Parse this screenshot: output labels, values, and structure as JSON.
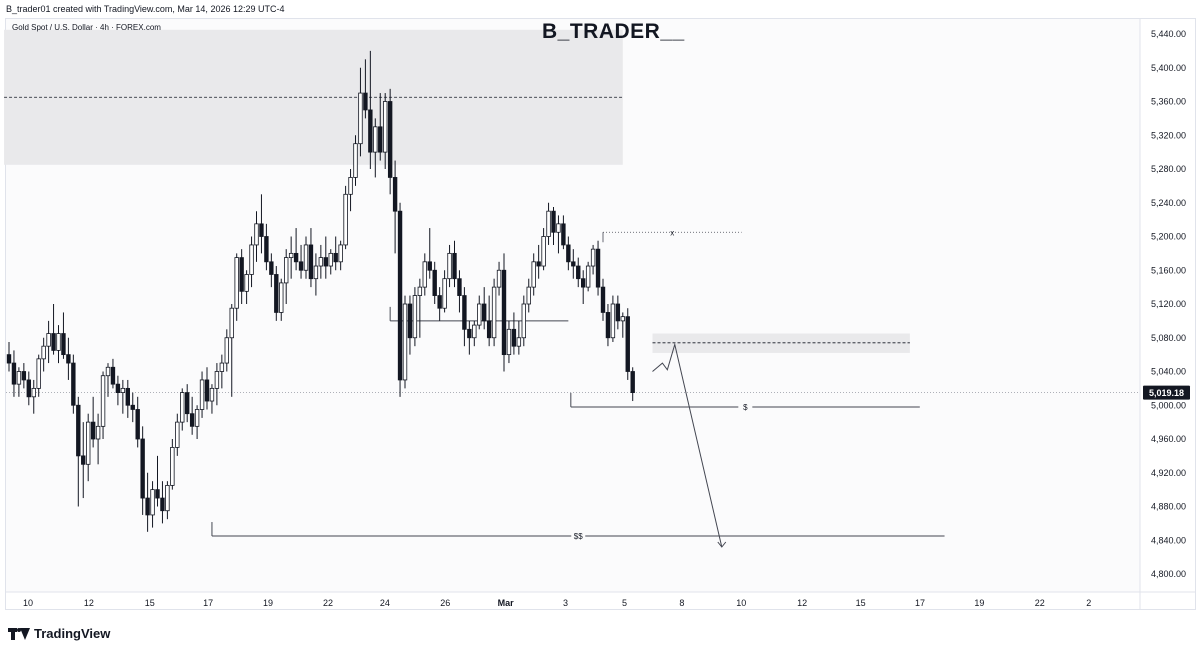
{
  "header": {
    "text": "B_trader01 created with TradingView.com, Mar 14, 2026 12:29 UTC-4"
  },
  "legend": {
    "symbol": "Gold Spot / U.S. Dollar · 4h · FOREX.com"
  },
  "watermark": {
    "text": "B_TRADER__"
  },
  "footer": {
    "brand": "TradingView"
  },
  "colors": {
    "bull": "#ffffff",
    "bear": "#131722",
    "wick": "#131722",
    "zone": "#e9e9eb",
    "line": "#131722"
  },
  "chart_data": {
    "type": "candlestick",
    "timeframe": "4h",
    "ylim": [
      4780,
      5460
    ],
    "y_ticks": [
      5440,
      5400,
      5360,
      5320,
      5280,
      5240,
      5200,
      5160,
      5120,
      5080,
      5040,
      5000,
      4960,
      4920,
      4880,
      4840,
      4800
    ],
    "x_ticks": [
      {
        "label": "10",
        "pos": 0.2
      },
      {
        "label": "12",
        "pos": 12.5
      },
      {
        "label": "15",
        "pos": 24.8
      },
      {
        "label": "17",
        "pos": 36.6
      },
      {
        "label": "19",
        "pos": 48.7
      },
      {
        "label": "22",
        "pos": 60.8
      },
      {
        "label": "24",
        "pos": 72.3
      },
      {
        "label": "26",
        "pos": 84.5
      },
      {
        "label": "Mar",
        "pos": 96.7
      },
      {
        "label": "3",
        "pos": 108.8
      },
      {
        "label": "5",
        "pos": 120.7
      },
      {
        "label": "8",
        "pos": 132.3
      },
      {
        "label": "10",
        "pos": 144.3
      },
      {
        "label": "12",
        "pos": 156.6
      },
      {
        "label": "15",
        "pos": 168.4
      },
      {
        "label": "17",
        "pos": 180.4
      },
      {
        "label": "19",
        "pos": 192.4
      },
      {
        "label": "22",
        "pos": 204.6
      },
      {
        "label": "2",
        "pos": 214.5
      }
    ],
    "candles": [
      [
        5060,
        5075,
        5040,
        5050
      ],
      [
        5050,
        5065,
        5010,
        5025
      ],
      [
        5025,
        5045,
        5010,
        5040
      ],
      [
        5040,
        5050,
        5020,
        5030
      ],
      [
        5030,
        5040,
        5000,
        5010
      ],
      [
        5010,
        5030,
        4990,
        5020
      ],
      [
        5020,
        5060,
        5010,
        5055
      ],
      [
        5055,
        5080,
        5040,
        5070
      ],
      [
        5070,
        5100,
        5050,
        5085
      ],
      [
        5085,
        5120,
        5060,
        5065
      ],
      [
        5065,
        5095,
        5050,
        5085
      ],
      [
        5085,
        5110,
        5055,
        5060
      ],
      [
        5060,
        5080,
        5030,
        5050
      ],
      [
        5050,
        5060,
        4990,
        5000
      ],
      [
        5000,
        5010,
        4880,
        4940
      ],
      [
        4940,
        4980,
        4890,
        4930
      ],
      [
        4930,
        4990,
        4910,
        4980
      ],
      [
        4980,
        5010,
        4950,
        4960
      ],
      [
        4960,
        4990,
        4930,
        4975
      ],
      [
        4975,
        5040,
        4960,
        5035
      ],
      [
        5035,
        5050,
        5010,
        5045
      ],
      [
        5045,
        5055,
        5020,
        5025
      ],
      [
        5025,
        5035,
        5000,
        5015
      ],
      [
        5015,
        5030,
        4990,
        5020
      ],
      [
        5020,
        5030,
        4985,
        5000
      ],
      [
        5000,
        5015,
        4980,
        4995
      ],
      [
        4995,
        5010,
        4950,
        4960
      ],
      [
        4960,
        4975,
        4870,
        4890
      ],
      [
        4890,
        4920,
        4850,
        4870
      ],
      [
        4870,
        4910,
        4855,
        4900
      ],
      [
        4900,
        4940,
        4880,
        4890
      ],
      [
        4890,
        4910,
        4860,
        4875
      ],
      [
        4875,
        4910,
        4865,
        4905
      ],
      [
        4905,
        4960,
        4900,
        4950
      ],
      [
        4950,
        4990,
        4940,
        4980
      ],
      [
        4980,
        5020,
        4970,
        5015
      ],
      [
        5015,
        5025,
        4980,
        4990
      ],
      [
        4990,
        5010,
        4965,
        4975
      ],
      [
        4975,
        5000,
        4960,
        4995
      ],
      [
        4995,
        5040,
        4985,
        5030
      ],
      [
        5030,
        5045,
        4995,
        5005
      ],
      [
        5005,
        5025,
        4990,
        5020
      ],
      [
        5020,
        5050,
        5000,
        5040
      ],
      [
        5040,
        5060,
        5020,
        5050
      ],
      [
        5050,
        5090,
        5040,
        5080
      ],
      [
        5080,
        5120,
        5010,
        5115
      ],
      [
        5115,
        5180,
        5100,
        5175
      ],
      [
        5175,
        5185,
        5120,
        5135
      ],
      [
        5135,
        5160,
        5120,
        5155
      ],
      [
        5155,
        5200,
        5140,
        5190
      ],
      [
        5190,
        5230,
        5170,
        5215
      ],
      [
        5215,
        5250,
        5180,
        5200
      ],
      [
        5200,
        5215,
        5160,
        5170
      ],
      [
        5170,
        5180,
        5140,
        5155
      ],
      [
        5155,
        5165,
        5100,
        5110
      ],
      [
        5110,
        5150,
        5100,
        5145
      ],
      [
        5145,
        5185,
        5120,
        5175
      ],
      [
        5175,
        5200,
        5150,
        5180
      ],
      [
        5180,
        5210,
        5160,
        5170
      ],
      [
        5170,
        5190,
        5150,
        5160
      ],
      [
        5160,
        5200,
        5150,
        5190
      ],
      [
        5190,
        5210,
        5140,
        5150
      ],
      [
        5150,
        5180,
        5130,
        5165
      ],
      [
        5165,
        5190,
        5150,
        5175
      ],
      [
        5175,
        5200,
        5150,
        5165
      ],
      [
        5165,
        5185,
        5155,
        5180
      ],
      [
        5180,
        5200,
        5160,
        5170
      ],
      [
        5170,
        5195,
        5160,
        5190
      ],
      [
        5190,
        5260,
        5185,
        5250
      ],
      [
        5250,
        5280,
        5230,
        5270
      ],
      [
        5270,
        5320,
        5260,
        5310
      ],
      [
        5310,
        5400,
        5295,
        5370
      ],
      [
        5370,
        5410,
        5340,
        5350
      ],
      [
        5350,
        5420,
        5280,
        5300
      ],
      [
        5300,
        5340,
        5270,
        5330
      ],
      [
        5330,
        5370,
        5290,
        5300
      ],
      [
        5300,
        5370,
        5280,
        5360
      ],
      [
        5360,
        5375,
        5250,
        5270
      ],
      [
        5270,
        5290,
        5180,
        5230
      ],
      [
        5230,
        5240,
        5010,
        5030
      ],
      [
        5030,
        5130,
        5020,
        5120
      ],
      [
        5120,
        5130,
        5060,
        5080
      ],
      [
        5080,
        5140,
        5070,
        5130
      ],
      [
        5130,
        5150,
        5080,
        5140
      ],
      [
        5140,
        5180,
        5130,
        5170
      ],
      [
        5170,
        5210,
        5150,
        5160
      ],
      [
        5160,
        5170,
        5120,
        5130
      ],
      [
        5130,
        5140,
        5100,
        5115
      ],
      [
        5115,
        5160,
        5110,
        5150
      ],
      [
        5150,
        5190,
        5140,
        5180
      ],
      [
        5180,
        5195,
        5140,
        5150
      ],
      [
        5150,
        5160,
        5110,
        5130
      ],
      [
        5130,
        5140,
        5070,
        5090
      ],
      [
        5090,
        5100,
        5060,
        5080
      ],
      [
        5080,
        5100,
        5070,
        5095
      ],
      [
        5095,
        5130,
        5090,
        5120
      ],
      [
        5120,
        5140,
        5090,
        5100
      ],
      [
        5100,
        5130,
        5070,
        5080
      ],
      [
        5080,
        5150,
        5070,
        5140
      ],
      [
        5140,
        5170,
        5130,
        5160
      ],
      [
        5160,
        5180,
        5040,
        5060
      ],
      [
        5060,
        5100,
        5050,
        5090
      ],
      [
        5090,
        5110,
        5060,
        5070
      ],
      [
        5070,
        5100,
        5060,
        5080
      ],
      [
        5080,
        5130,
        5070,
        5120
      ],
      [
        5120,
        5150,
        5110,
        5140
      ],
      [
        5140,
        5180,
        5130,
        5170
      ],
      [
        5170,
        5190,
        5150,
        5165
      ],
      [
        5165,
        5210,
        5160,
        5200
      ],
      [
        5200,
        5240,
        5190,
        5230
      ],
      [
        5230,
        5235,
        5190,
        5205
      ],
      [
        5205,
        5225,
        5180,
        5215
      ],
      [
        5215,
        5225,
        5185,
        5190
      ],
      [
        5190,
        5200,
        5160,
        5170
      ],
      [
        5170,
        5185,
        5150,
        5165
      ],
      [
        5165,
        5175,
        5140,
        5150
      ],
      [
        5150,
        5160,
        5120,
        5140
      ],
      [
        5140,
        5170,
        5135,
        5165
      ],
      [
        5165,
        5190,
        5155,
        5185
      ],
      [
        5185,
        5195,
        5130,
        5140
      ],
      [
        5140,
        5150,
        5100,
        5110
      ],
      [
        5110,
        5120,
        5070,
        5080
      ],
      [
        5080,
        5130,
        5075,
        5120
      ],
      [
        5120,
        5130,
        5090,
        5100
      ],
      [
        5100,
        5110,
        5080,
        5105
      ],
      [
        5105,
        5115,
        5030,
        5040
      ],
      [
        5040,
        5045,
        5005,
        5015
      ]
    ],
    "current_price": "5,019.18",
    "annotations": [
      {
        "type": "zone",
        "x1": -1,
        "x2": 124,
        "y1": 5285,
        "y2": 5445
      },
      {
        "type": "dashed",
        "x1": -1,
        "x2": 124,
        "y": 5365
      },
      {
        "type": "zone",
        "x1": 130,
        "x2": 182,
        "y1": 5062,
        "y2": 5085
      },
      {
        "type": "dashed",
        "x1": 130,
        "x2": 182,
        "y": 5074
      },
      {
        "type": "hline",
        "x1": 77,
        "x2": 113,
        "y": 5100,
        "label": ""
      },
      {
        "type": "hline",
        "x1": 113.5,
        "x2": 184,
        "y": 4998,
        "label": "$"
      },
      {
        "type": "hline",
        "x1": 41,
        "x2": 189,
        "y": 4845,
        "label": "$$"
      },
      {
        "type": "dotted",
        "x1": 120,
        "x2": 148,
        "y": 5205,
        "label": "x"
      }
    ]
  }
}
